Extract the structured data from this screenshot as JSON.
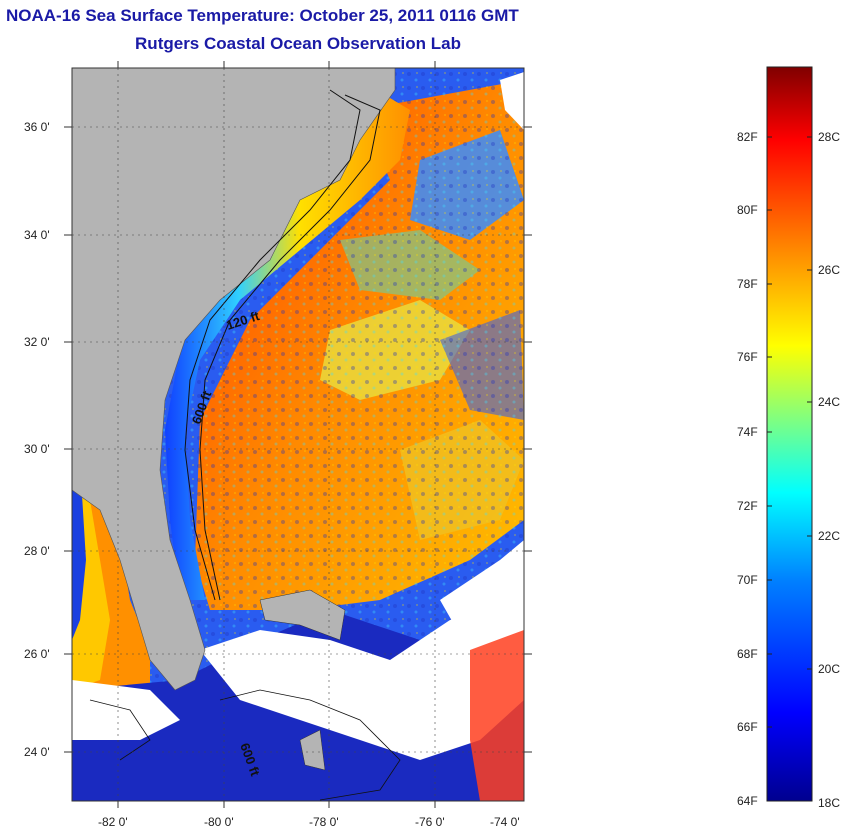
{
  "title": "NOAA-16 Sea Surface Temperature:  October 25, 2011 0116 GMT",
  "subtitle": "Rutgers Coastal Ocean Observation Lab",
  "map": {
    "lat_labels": [
      "36 0'",
      "34 0'",
      "32 0'",
      "30 0'",
      "28 0'",
      "26 0'",
      "24 0'"
    ],
    "lon_labels": [
      "-82 0'",
      "-80 0'",
      "-78 0'",
      "-76 0'",
      "-74 0'"
    ],
    "contour_labels": [
      "120 ft",
      "600 ft",
      "600 ft"
    ],
    "land_color": "#b4b4b4",
    "cloud_color": "#ffffff"
  },
  "colorbar": {
    "f_labels": [
      "82F",
      "80F",
      "78F",
      "76F",
      "74F",
      "72F",
      "70F",
      "68F",
      "66F",
      "64F"
    ],
    "c_labels": [
      "28C",
      "26C",
      "24C",
      "22C",
      "20C",
      "18C"
    ],
    "colors": [
      "#00008f",
      "#0000ff",
      "#0080ff",
      "#00ffff",
      "#80ff80",
      "#ffff00",
      "#ff8000",
      "#ff0000",
      "#800000"
    ]
  }
}
